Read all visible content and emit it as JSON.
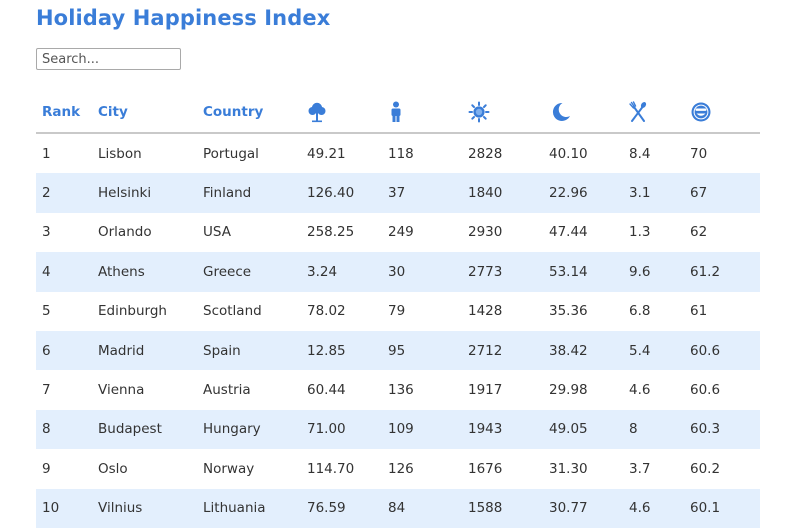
{
  "page": {
    "title": "Holiday Happiness Index"
  },
  "search": {
    "placeholder": "Search..."
  },
  "table": {
    "headers": {
      "rank": "Rank",
      "city": "City",
      "country": "Country"
    },
    "icon_columns": [
      "tree-icon",
      "person-icon",
      "sun-icon",
      "moon-icon",
      "fork-knife-icon",
      "smiley-icon"
    ],
    "colors": {
      "accent": "#3a7dd8",
      "row_stripe": "#e3effd",
      "header_rule": "#c9c9c9"
    },
    "rows": [
      [
        "1",
        "Lisbon",
        "Portugal",
        "49.21",
        "118",
        "2828",
        "40.10",
        "8.4",
        "70"
      ],
      [
        "2",
        "Helsinki",
        "Finland",
        "126.40",
        "37",
        "1840",
        "22.96",
        "3.1",
        "67"
      ],
      [
        "3",
        "Orlando",
        "USA",
        "258.25",
        "249",
        "2930",
        "47.44",
        "1.3",
        "62"
      ],
      [
        "4",
        "Athens",
        "Greece",
        "3.24",
        "30",
        "2773",
        "53.14",
        "9.6",
        "61.2"
      ],
      [
        "5",
        "Edinburgh",
        "Scotland",
        "78.02",
        "79",
        "1428",
        "35.36",
        "6.8",
        "61"
      ],
      [
        "6",
        "Madrid",
        "Spain",
        "12.85",
        "95",
        "2712",
        "38.42",
        "5.4",
        "60.6"
      ],
      [
        "7",
        "Vienna",
        "Austria",
        "60.44",
        "136",
        "1917",
        "29.98",
        "4.6",
        "60.6"
      ],
      [
        "8",
        "Budapest",
        "Hungary",
        "71.00",
        "109",
        "1943",
        "49.05",
        "8",
        "60.3"
      ],
      [
        "9",
        "Oslo",
        "Norway",
        "114.70",
        "126",
        "1676",
        "31.30",
        "3.7",
        "60.2"
      ],
      [
        "10",
        "Vilnius",
        "Lithuania",
        "76.59",
        "84",
        "1588",
        "30.77",
        "4.6",
        "60.1"
      ]
    ]
  }
}
